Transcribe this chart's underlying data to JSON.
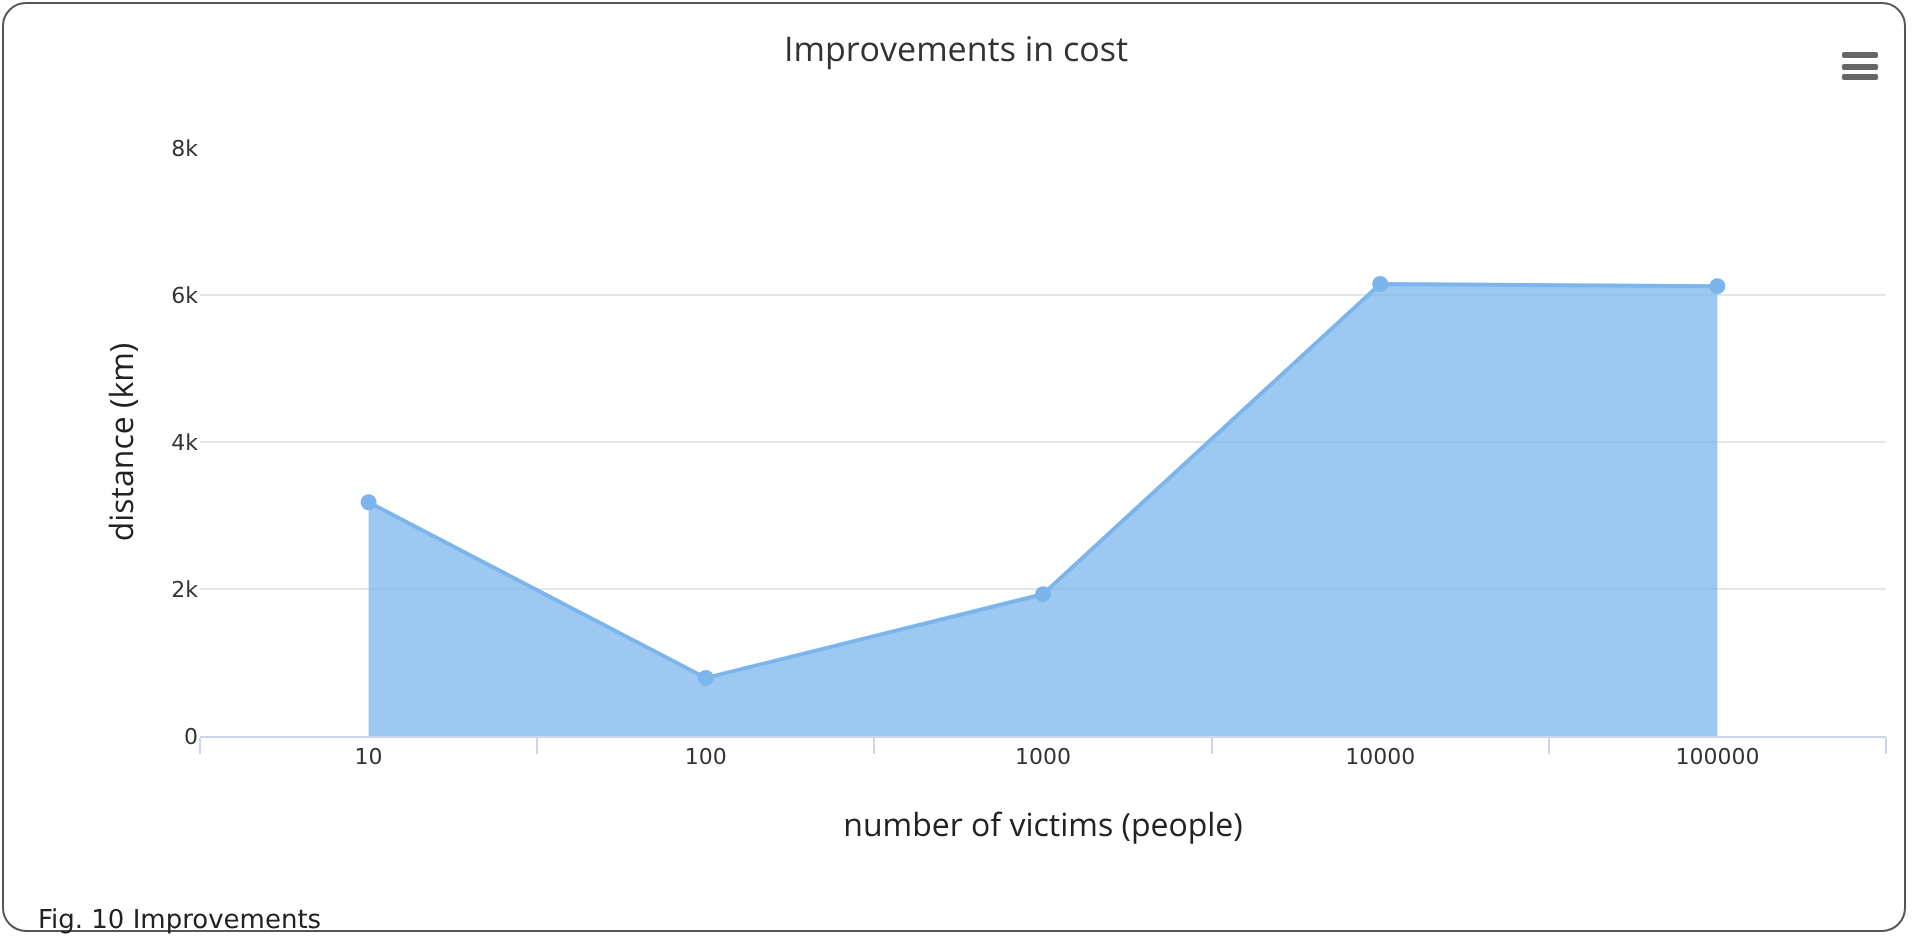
{
  "chart_data": {
    "type": "area",
    "title": "Improvements in cost",
    "xlabel": "number of victims (people)",
    "ylabel": "distance (km)",
    "categories": [
      "10",
      "100",
      "1000",
      "10000",
      "100000"
    ],
    "series": [
      {
        "color": "#7cb5ec",
        "values": [
          3180,
          790,
          1930,
          6150,
          6120
        ]
      }
    ],
    "ylim": [
      0,
      8000
    ],
    "yticks": [
      {
        "value": 0,
        "label": "0"
      },
      {
        "value": 2000,
        "label": "2k"
      },
      {
        "value": 4000,
        "label": "4k"
      },
      {
        "value": 6000,
        "label": "6k"
      },
      {
        "value": 8000,
        "label": "8k"
      }
    ],
    "grid": "y",
    "marker": "circle",
    "line_style": "solid",
    "annotations": [
      "Fig. 10 Improvements"
    ]
  }
}
